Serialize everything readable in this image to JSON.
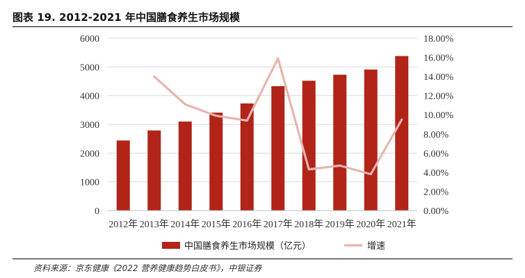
{
  "figure": {
    "title": "图表 19. 2012-2021 年中国膳食养生市场规模",
    "source": "资料来源：京东健康《2022 营养健康趋势白皮书》，中银证券"
  },
  "chart_data": {
    "type": "bar",
    "categories": [
      "2012年",
      "2013年",
      "2014年",
      "2015年",
      "2016年",
      "2017年",
      "2018年",
      "2019年",
      "2020年",
      "2021年"
    ],
    "series": [
      {
        "name": "中国膳食养生市场规模（亿元）",
        "type": "bar",
        "axis": "left",
        "color": "#b22318",
        "values": [
          2440,
          2790,
          3100,
          3410,
          3730,
          4330,
          4520,
          4730,
          4910,
          5380
        ]
      },
      {
        "name": "增速",
        "type": "line",
        "axis": "right",
        "color": "#e6b5ae",
        "values": [
          null,
          0.14,
          0.111,
          0.099,
          0.094,
          0.159,
          0.043,
          0.047,
          0.038,
          0.095
        ]
      }
    ],
    "y_left": {
      "min": 0,
      "max": 6000,
      "ticks": [
        0,
        1000,
        2000,
        3000,
        4000,
        5000,
        6000
      ],
      "tick_labels": [
        "0",
        "1000",
        "2000",
        "3000",
        "4000",
        "5000",
        "6000"
      ]
    },
    "y_right": {
      "min": 0,
      "max": 0.18,
      "ticks": [
        0,
        0.02,
        0.04,
        0.06,
        0.08,
        0.1,
        0.12,
        0.14,
        0.16,
        0.18
      ],
      "tick_labels": [
        "0.00%",
        "2.00%",
        "4.00%",
        "6.00%",
        "8.00%",
        "10.00%",
        "12.00%",
        "14.00%",
        "16.00%",
        "18.00%"
      ]
    },
    "grid": true,
    "legend_position": "bottom"
  }
}
